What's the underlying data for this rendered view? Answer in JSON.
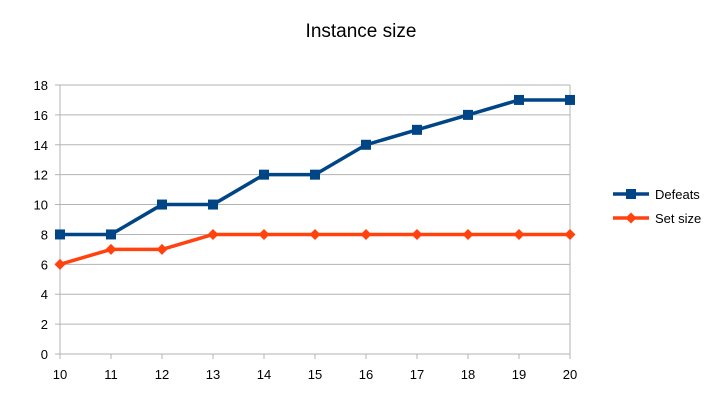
{
  "chart_data": {
    "type": "line",
    "title": "Instance size",
    "xlabel": "",
    "ylabel": "",
    "x": [
      10,
      11,
      12,
      13,
      14,
      15,
      16,
      17,
      18,
      19,
      20
    ],
    "xlim": [
      10,
      20
    ],
    "ylim": [
      0,
      18
    ],
    "yticks": [
      0,
      2,
      4,
      6,
      8,
      10,
      12,
      14,
      16,
      18
    ],
    "grid": true,
    "legend_position": "right",
    "series": [
      {
        "name": "Defeats",
        "color": "#004586",
        "marker": "square",
        "values": [
          8,
          8,
          10,
          10,
          12,
          12,
          14,
          15,
          16,
          17,
          17
        ]
      },
      {
        "name": "Set size",
        "color": "#ff420e",
        "marker": "diamond",
        "values": [
          6,
          7,
          7,
          8,
          8,
          8,
          8,
          8,
          8,
          8,
          8
        ]
      }
    ]
  }
}
